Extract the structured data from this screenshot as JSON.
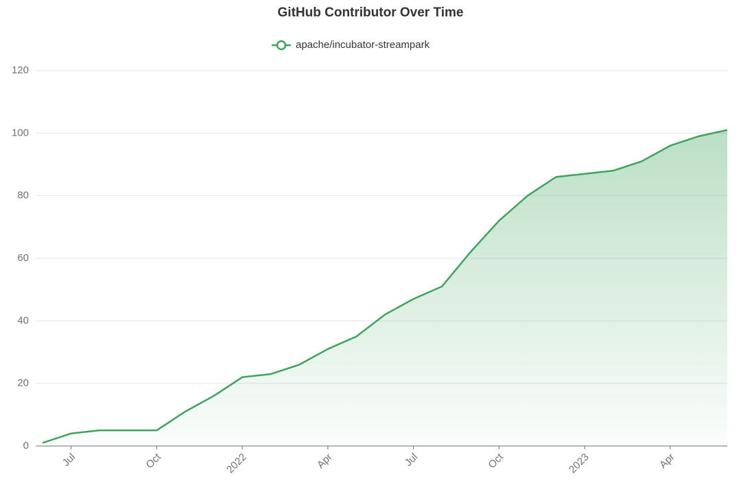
{
  "chart_data": {
    "type": "area",
    "title": "GitHub Contributor Over Time",
    "series": [
      {
        "name": "apache/incubator-streampark",
        "color": "#3da35a",
        "values": [
          1,
          4,
          5,
          5,
          5,
          11,
          16,
          22,
          23,
          26,
          31,
          35,
          42,
          47,
          51,
          62,
          72,
          80,
          86,
          87,
          88,
          91,
          96,
          99,
          101
        ]
      }
    ],
    "x": [
      "2021-06",
      "2021-07",
      "2021-08",
      "2021-09",
      "2021-10",
      "2021-11",
      "2021-12",
      "2022-01",
      "2022-02",
      "2022-03",
      "2022-04",
      "2022-05",
      "2022-06",
      "2022-07",
      "2022-08",
      "2022-09",
      "2022-10",
      "2022-11",
      "2022-12",
      "2023-01",
      "2023-02",
      "2023-03",
      "2023-04",
      "2023-05",
      "2023-06"
    ],
    "xlim": [
      "2021-06",
      "2023-06"
    ],
    "xticks": [
      {
        "value": "2021-07",
        "label": "Jul"
      },
      {
        "value": "2021-10",
        "label": "Oct"
      },
      {
        "value": "2022-01",
        "label": "2022"
      },
      {
        "value": "2022-04",
        "label": "Apr"
      },
      {
        "value": "2022-07",
        "label": "Jul"
      },
      {
        "value": "2022-10",
        "label": "Oct"
      },
      {
        "value": "2023-01",
        "label": "2023"
      },
      {
        "value": "2023-04",
        "label": "Apr"
      }
    ],
    "ylim": [
      0,
      120
    ],
    "yticks": [
      0,
      20,
      40,
      60,
      80,
      100,
      120
    ],
    "grid": true
  }
}
